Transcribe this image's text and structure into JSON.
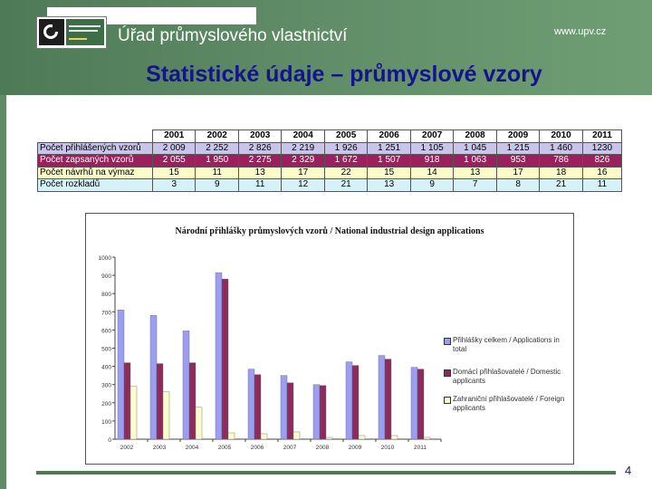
{
  "header": {
    "office_name": "Úřad průmyslového vlastnictví",
    "url": "www.upv.cz"
  },
  "slide": {
    "title": "Statistické údaje – průmyslové vzory",
    "page_number": "4"
  },
  "table": {
    "years": [
      "2001",
      "2002",
      "2003",
      "2004",
      "2005",
      "2006",
      "2007",
      "2008",
      "2009",
      "2010",
      "2011"
    ],
    "rows": [
      {
        "label": "Počet přihlášených vzorů",
        "values": [
          "2 009",
          "2 252",
          "2 826",
          "2 219",
          "1 926",
          "1 251",
          "1 105",
          "1 045",
          "1 215",
          "1 460",
          "1230"
        ]
      },
      {
        "label": "Počet zapsaných vzorů",
        "values": [
          "2 055",
          "1 950",
          "2 275",
          "2 329",
          "1 672",
          "1 507",
          "918",
          "1 063",
          "953",
          "786",
          "826"
        ]
      },
      {
        "label": "Počet návrhů na výmaz",
        "values": [
          "15",
          "11",
          "13",
          "17",
          "22",
          "15",
          "14",
          "13",
          "17",
          "18",
          "16"
        ]
      },
      {
        "label": "Počet rozkladů",
        "values": [
          "3",
          "9",
          "11",
          "12",
          "21",
          "13",
          "9",
          "7",
          "8",
          "21",
          "11"
        ]
      }
    ],
    "row_colors": [
      "#c9c5ea",
      "#9c1f5e",
      "#fdfbc6",
      "#d6f2f8"
    ]
  },
  "chart_data": {
    "type": "bar",
    "title": "Národní přihlášky průmyslových vzorů / National industrial design applications",
    "categories": [
      "2002",
      "2003",
      "2004",
      "2005",
      "2006",
      "2007",
      "2008",
      "2009",
      "2010",
      "2011"
    ],
    "yticks": [
      "0",
      "100",
      "200",
      "300",
      "400",
      "500",
      "600",
      "700",
      "800",
      "900",
      "1000"
    ],
    "ylim": [
      0,
      1000
    ],
    "grid": false,
    "legend_position": "right",
    "series": [
      {
        "name": "Přihlášky celkem / Applications in total",
        "color": "#9d9df2",
        "values": [
          710,
          680,
          595,
          915,
          385,
          350,
          300,
          425,
          460,
          395
        ]
      },
      {
        "name": "Domácí přihlašovatelé / Domestic applicants",
        "color": "#8e2a5c",
        "values": [
          420,
          415,
          420,
          880,
          355,
          310,
          295,
          405,
          440,
          385
        ]
      },
      {
        "name": "Zahraniční přihlašovatelé / Foreign applicants",
        "color": "#fdfbd0",
        "values": [
          290,
          260,
          175,
          35,
          30,
          40,
          10,
          20,
          20,
          10
        ]
      }
    ]
  }
}
